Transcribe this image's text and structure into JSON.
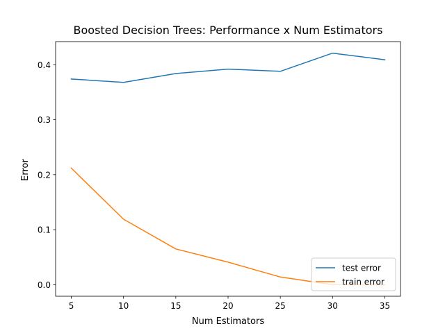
{
  "chart_data": {
    "type": "line",
    "title": "Boosted Decision Trees: Performance x Num Estimators",
    "xlabel": "Num Estimators",
    "ylabel": "Error",
    "x": [
      5,
      10,
      15,
      20,
      25,
      30,
      35
    ],
    "xlim": [
      3.5,
      36.5
    ],
    "ylim": [
      -0.021,
      0.442
    ],
    "xticks": [
      5,
      10,
      15,
      20,
      25,
      30,
      35
    ],
    "xtick_labels": [
      "5",
      "10",
      "15",
      "20",
      "25",
      "30",
      "35"
    ],
    "yticks": [
      0.0,
      0.1,
      0.2,
      0.3,
      0.4
    ],
    "ytick_labels": [
      "0.0",
      "0.1",
      "0.2",
      "0.3",
      "0.4"
    ],
    "grid": false,
    "legend_position": "lower right",
    "series": [
      {
        "name": "test error",
        "color": "#1f77b4",
        "values": [
          0.374,
          0.368,
          0.384,
          0.392,
          0.388,
          0.421,
          0.409
        ]
      },
      {
        "name": "train error",
        "color": "#ff7f0e",
        "values": [
          0.212,
          0.119,
          0.065,
          0.041,
          0.014,
          0.0,
          0.0
        ]
      }
    ]
  }
}
